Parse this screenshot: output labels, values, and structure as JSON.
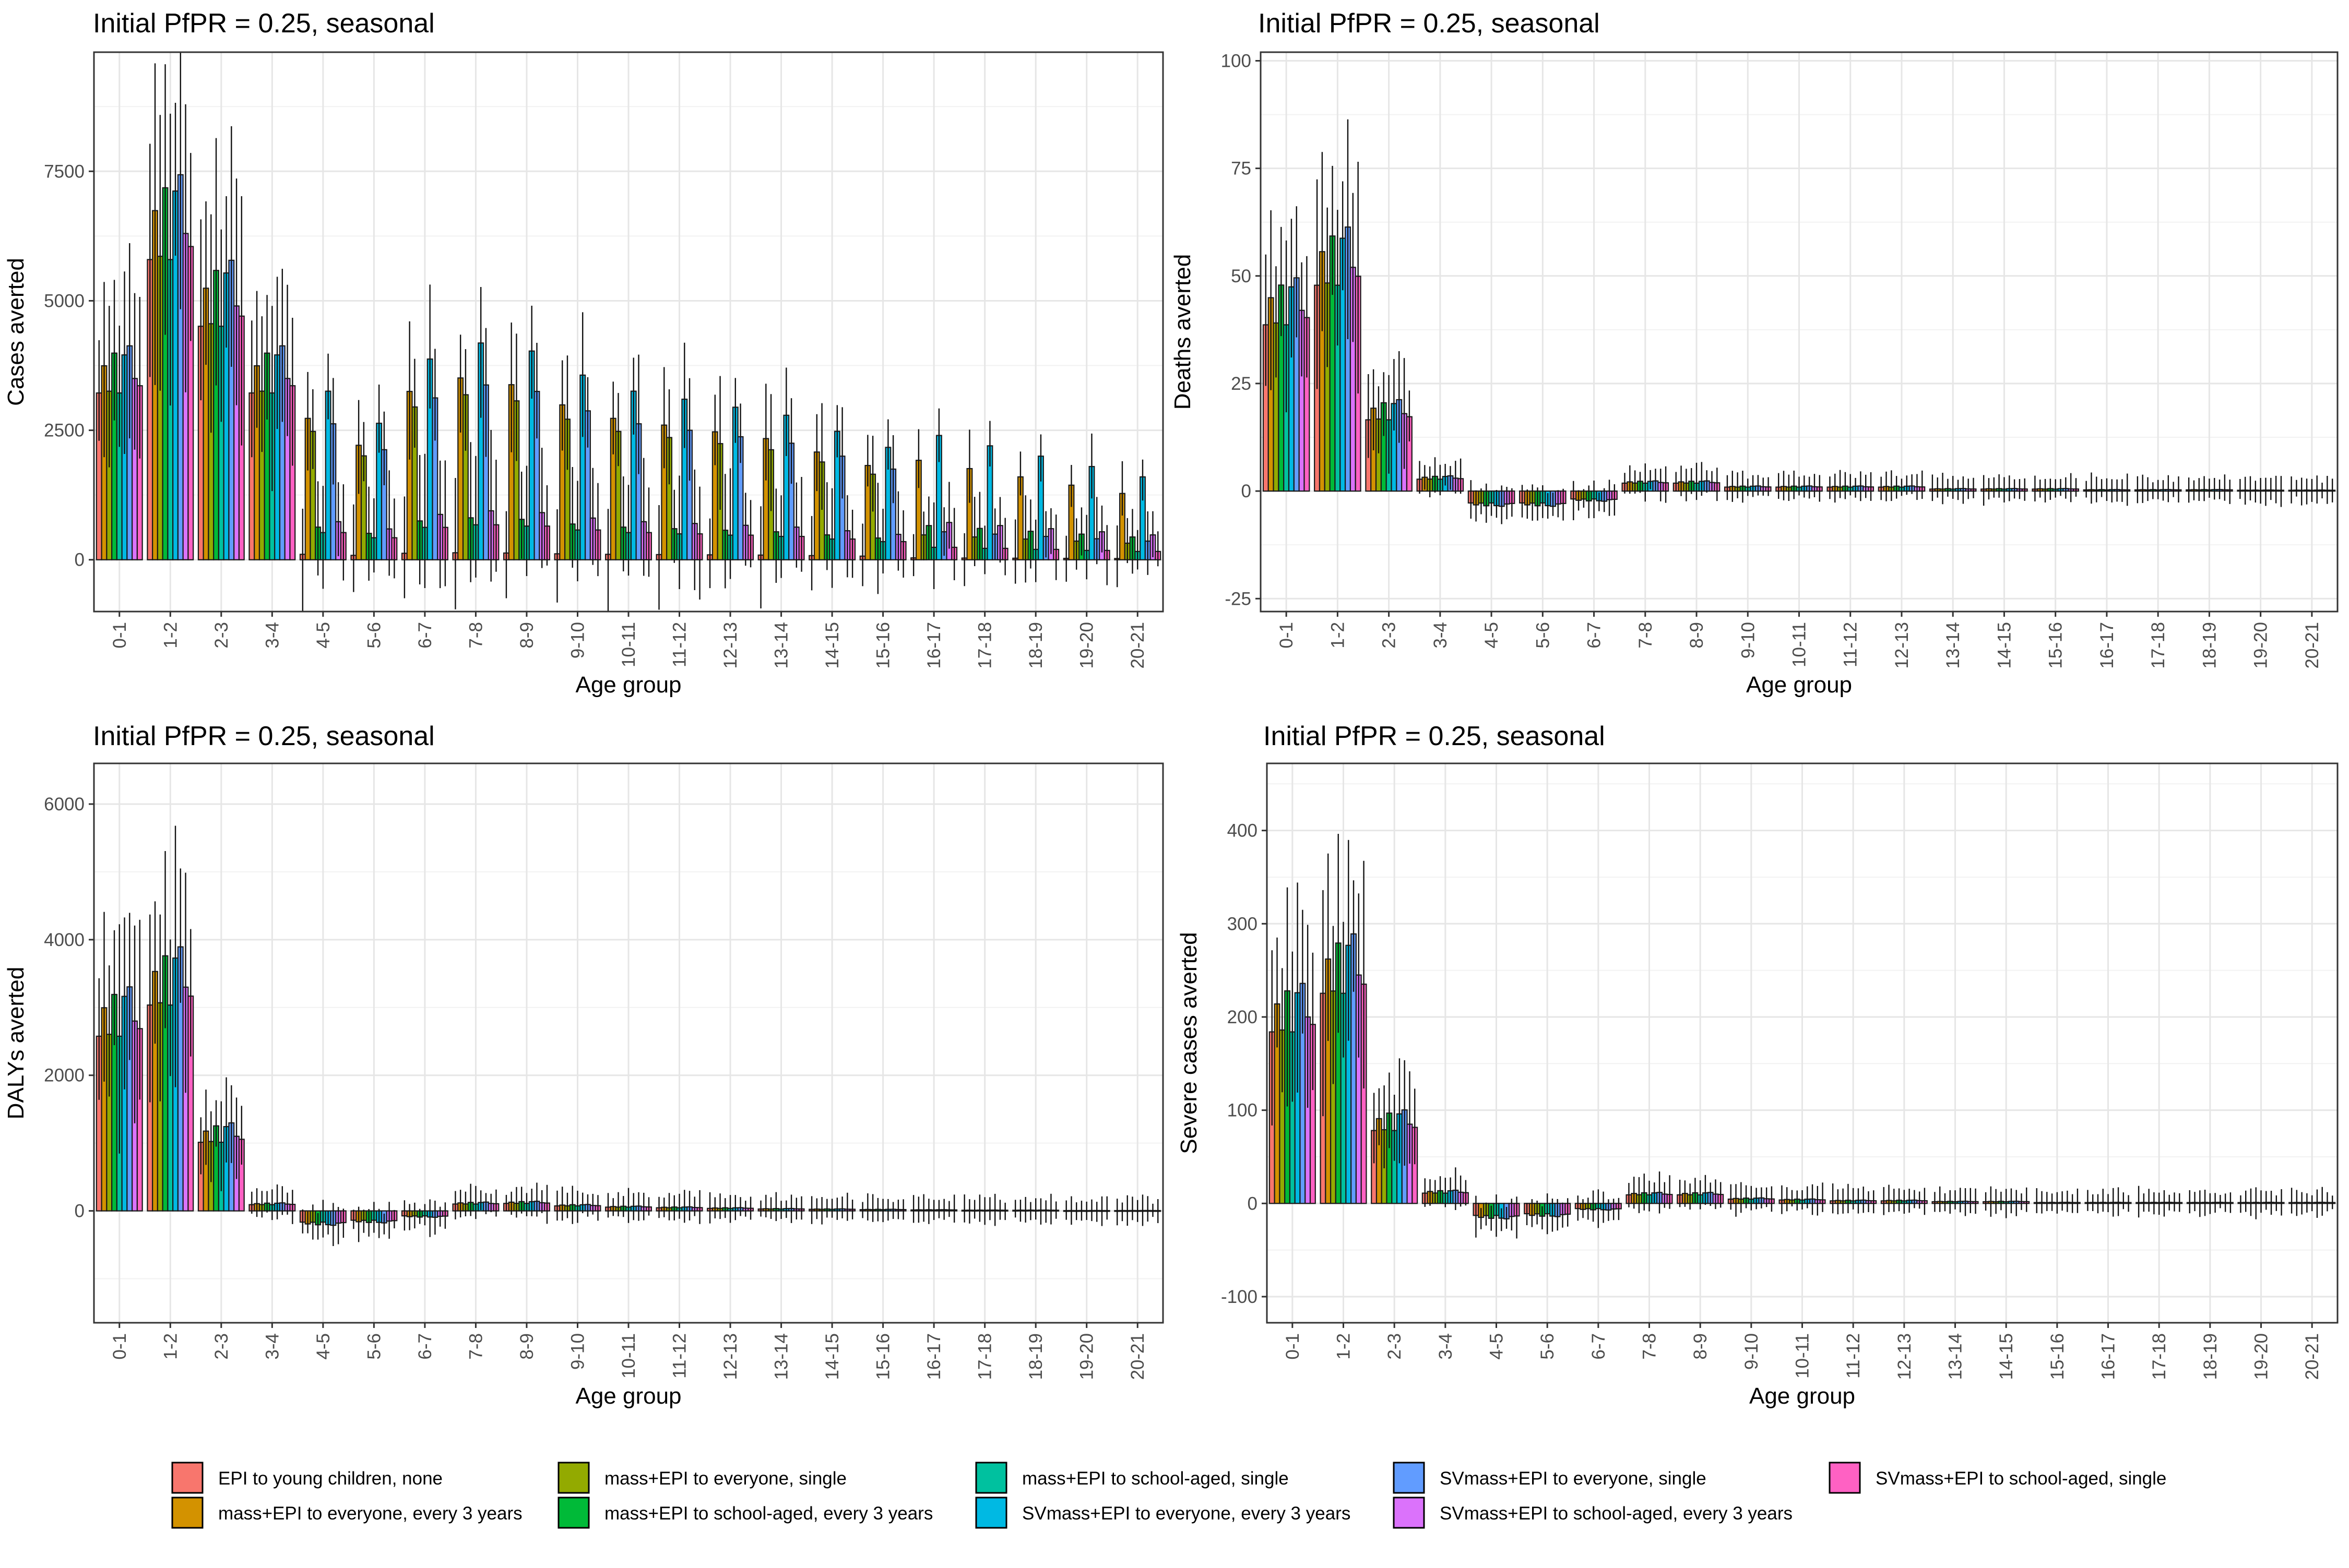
{
  "legend": {
    "items": [
      {
        "label": "EPI to young children, none",
        "color": "#F8766D"
      },
      {
        "label": "mass+EPI to everyone, every 3 years",
        "color": "#D39200"
      },
      {
        "label": "mass+EPI to everyone, single",
        "color": "#93AA00"
      },
      {
        "label": "mass+EPI to school-aged, every 3 years",
        "color": "#00BA38"
      },
      {
        "label": "mass+EPI to school-aged, single",
        "color": "#00C19F"
      },
      {
        "label": "SVmass+EPI to everyone, every 3 years",
        "color": "#00B9E3"
      },
      {
        "label": "SVmass+EPI to everyone, single",
        "color": "#619CFF"
      },
      {
        "label": "SVmass+EPI to school-aged, every 3 years",
        "color": "#DB72FB"
      },
      {
        "label": "SVmass+EPI to school-aged, single",
        "color": "#FF61C3"
      }
    ]
  },
  "chart_data": [
    {
      "type": "bar",
      "title": "Initial PfPR = 0.25, seasonal",
      "xlabel": "Age group",
      "ylabel": "Cases averted",
      "ylim": [
        -1000,
        9800
      ],
      "yticks": [
        0,
        2500,
        5000,
        7500
      ],
      "grid": true,
      "categories": [
        "0-1",
        "1-2",
        "2-3",
        "3-4",
        "4-5",
        "5-6",
        "6-7",
        "7-8",
        "8-9",
        "9-10",
        "10-11",
        "11-12",
        "12-13",
        "13-14",
        "14-15",
        "15-16",
        "16-17",
        "17-18",
        "18-19",
        "19-20",
        "20-21"
      ],
      "group_totals": [
        3500,
        6300,
        4900,
        3500,
        2100,
        1700,
        2500,
        2700,
        2600,
        2300,
        2100,
        2000,
        1900,
        1800,
        1600,
        1400,
        1200,
        1100,
        1000,
        900,
        800
      ]
    },
    {
      "type": "bar",
      "title": "Initial PfPR = 0.25, seasonal",
      "xlabel": "Age group",
      "ylabel": "Deaths averted",
      "ylim": [
        -28,
        102
      ],
      "yticks": [
        -25,
        0,
        25,
        50,
        75,
        100
      ],
      "grid": true,
      "categories": [
        "0-1",
        "1-2",
        "2-3",
        "3-4",
        "4-5",
        "5-6",
        "6-7",
        "7-8",
        "8-9",
        "9-10",
        "10-11",
        "11-12",
        "12-13",
        "13-14",
        "14-15",
        "15-16",
        "16-17",
        "17-18",
        "18-19",
        "19-20",
        "20-21"
      ],
      "group_totals": [
        42,
        52,
        18,
        3,
        -3,
        -3,
        -2,
        2,
        2,
        1,
        1,
        1,
        1,
        0.5,
        0.5,
        0.5,
        0.3,
        0.3,
        0.3,
        0.2,
        0.2
      ]
    },
    {
      "type": "bar",
      "title": "Initial PfPR = 0.25, seasonal",
      "xlabel": "Age group",
      "ylabel": "DALYs averted",
      "ylim": [
        -1650,
        6600
      ],
      "yticks": [
        0,
        2000,
        4000,
        6000
      ],
      "grid": true,
      "categories": [
        "0-1",
        "1-2",
        "2-3",
        "3-4",
        "4-5",
        "5-6",
        "6-7",
        "7-8",
        "8-9",
        "9-10",
        "10-11",
        "11-12",
        "12-13",
        "13-14",
        "14-15",
        "15-16",
        "16-17",
        "17-18",
        "18-19",
        "19-20",
        "20-21"
      ],
      "group_totals": [
        2800,
        3300,
        1100,
        100,
        -180,
        -150,
        -80,
        110,
        120,
        80,
        60,
        50,
        40,
        30,
        25,
        20,
        15,
        10,
        10,
        5,
        5
      ]
    },
    {
      "type": "bar",
      "title": "Initial PfPR = 0.25, seasonal",
      "xlabel": "Age group",
      "ylabel": "Severe cases averted",
      "ylim": [
        -128,
        472
      ],
      "yticks": [
        -100,
        0,
        100,
        200,
        300,
        400
      ],
      "grid": true,
      "categories": [
        "0-1",
        "1-2",
        "2-3",
        "3-4",
        "4-5",
        "5-6",
        "6-7",
        "7-8",
        "8-9",
        "9-10",
        "10-11",
        "11-12",
        "12-13",
        "13-14",
        "14-15",
        "15-16",
        "16-17",
        "17-18",
        "18-19",
        "19-20",
        "20-21"
      ],
      "group_totals": [
        200,
        245,
        85,
        12,
        -14,
        -12,
        -6,
        10,
        10,
        5,
        4,
        3,
        3,
        2,
        2,
        1,
        1,
        1,
        1,
        1,
        1
      ]
    }
  ]
}
